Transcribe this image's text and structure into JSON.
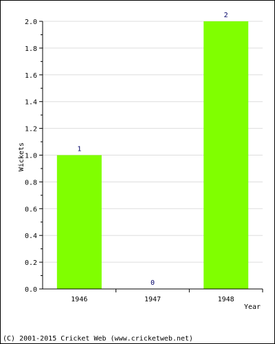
{
  "chart_data": {
    "type": "bar",
    "categories": [
      "1946",
      "1947",
      "1948"
    ],
    "values": [
      1,
      0,
      2
    ],
    "data_labels": [
      "1",
      "0",
      "2"
    ],
    "title": "",
    "xlabel": "Year",
    "ylabel": "Wickets",
    "ylim": [
      0,
      2
    ],
    "yticks": [
      "0.0",
      "0.2",
      "0.4",
      "0.6",
      "0.8",
      "1.0",
      "1.2",
      "1.4",
      "1.6",
      "1.8",
      "2.0"
    ],
    "grid": true,
    "legend": "none",
    "bar_color": "#80ff00",
    "label_color": "#000066",
    "grid_color": "#dddddd"
  },
  "footer": {
    "copyright": "(C) 2001-2015 Cricket Web (www.cricketweb.net)"
  }
}
